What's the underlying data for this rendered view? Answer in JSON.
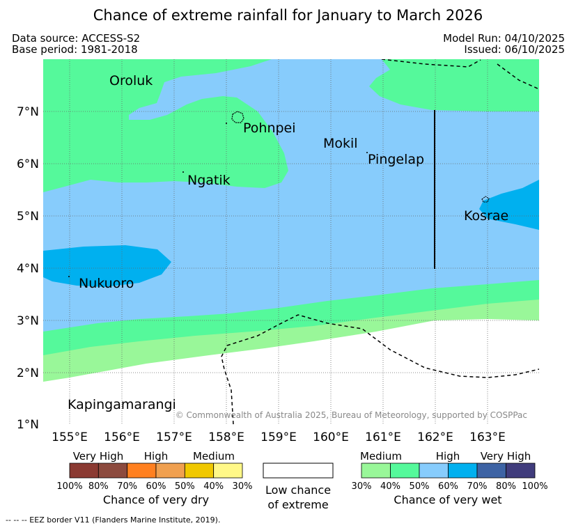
{
  "title": "Chance of extreme rainfall for January to March 2026",
  "meta": {
    "data_source": "Data source: ACCESS-S2",
    "base_period": "Base period: 1981-2018",
    "model_run": "Model Run: 04/10/2025",
    "issued": "Issued: 06/10/2025"
  },
  "places": {
    "oroluk": "Oroluk",
    "pohnpei": "Pohnpei",
    "mokil": "Mokil",
    "pingelap": "Pingelap",
    "ngatik": "Ngatik",
    "kosrae": "Kosrae",
    "nukuoro": "Nukuoro",
    "kapingamarangi": "Kapingamarangi"
  },
  "axes": {
    "lat_ticks": [
      "7°N",
      "6°N",
      "5°N",
      "4°N",
      "3°N",
      "2°N",
      "1°N"
    ],
    "lon_ticks": [
      "155°E",
      "156°E",
      "157°E",
      "158°E",
      "159°E",
      "160°E",
      "161°E",
      "162°E",
      "163°E"
    ]
  },
  "copyright": "© Commonwealth of Australia 2025, Bureau of Meteorology, supported by COSPPac",
  "legend": {
    "dry": {
      "groups": [
        "Very High",
        "High",
        "Medium"
      ],
      "percent_labels": [
        "100%",
        "80%",
        "70%",
        "60%",
        "50%",
        "40%",
        "30%"
      ],
      "colors": [
        "#8b3a32",
        "#8c4a3e",
        "#ff8020",
        "#f0a050",
        "#f0c800",
        "#fff888"
      ],
      "caption": "Chance of very dry"
    },
    "low": {
      "caption_line1": "Low chance",
      "caption_line2": "of extreme"
    },
    "wet": {
      "groups": [
        "Medium",
        "High",
        "Very High"
      ],
      "percent_labels": [
        "30%",
        "40%",
        "50%",
        "60%",
        "70%",
        "80%",
        "100%"
      ],
      "colors": [
        "#99f799",
        "#55f99b",
        "#87ccfc",
        "#00b0ef",
        "#3d63a4",
        "#403c7c"
      ],
      "caption": "Chance of very wet"
    }
  },
  "eez_note": "--  --  -- EEZ border V11 (Flanders Marine Institute, 2019)."
}
